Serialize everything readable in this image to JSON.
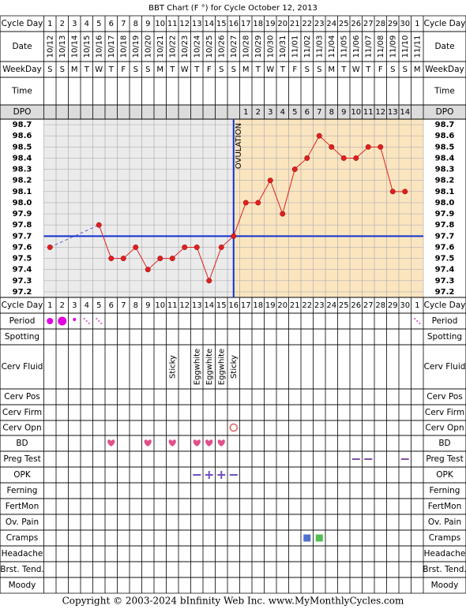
{
  "title": "BBT Chart (F °) for Cycle October 12, 2013",
  "copyright": "Copyright © 2003-2024 bInfinity Web Inc.     www.MyMonthlyCycles.com",
  "labels": {
    "cycle_day": "Cycle Day",
    "date": "Date",
    "weekday": "WeekDay",
    "time": "Time",
    "dpo": "DPO",
    "period": "Period",
    "spotting": "Spotting",
    "cerv_fluid": "Cerv Fluid",
    "cerv_pos": "Cerv Pos",
    "cerv_firm": "Cerv Firm",
    "cerv_opn": "Cerv Opn",
    "bd": "BD",
    "preg_test": "Preg Test",
    "opk": "OPK",
    "ferning": "Ferning",
    "fertmon": "FertMon",
    "ov_pain": "Ov. Pain",
    "cramps": "Cramps",
    "headache": "Headache",
    "brst_tend": "Brst. Tend.",
    "moody": "Moody"
  },
  "cycle_days": [
    1,
    2,
    3,
    4,
    5,
    6,
    7,
    8,
    9,
    10,
    11,
    12,
    13,
    14,
    15,
    16,
    17,
    18,
    19,
    20,
    21,
    22,
    23,
    24,
    25,
    26,
    27,
    28,
    29,
    30,
    1
  ],
  "dates": [
    "10/12",
    "10/13",
    "10/14",
    "10/15",
    "10/16",
    "10/17",
    "10/18",
    "10/19",
    "10/20",
    "10/21",
    "10/22",
    "10/23",
    "10/24",
    "10/25",
    "10/26",
    "10/27",
    "10/28",
    "10/29",
    "10/30",
    "10/31",
    "11/01",
    "11/02",
    "11/03",
    "11/04",
    "11/05",
    "11/06",
    "11/07",
    "11/08",
    "11/09",
    "11/10",
    "11/11"
  ],
  "weekdays": [
    "S",
    "S",
    "M",
    "T",
    "W",
    "T",
    "F",
    "S",
    "S",
    "M",
    "T",
    "W",
    "T",
    "F",
    "S",
    "S",
    "M",
    "T",
    "W",
    "T",
    "F",
    "S",
    "S",
    "M",
    "T",
    "W",
    "T",
    "F",
    "S",
    "S",
    "M"
  ],
  "dpo": [
    null,
    null,
    null,
    null,
    null,
    null,
    null,
    null,
    null,
    null,
    null,
    null,
    null,
    null,
    null,
    null,
    1,
    2,
    3,
    4,
    5,
    6,
    7,
    8,
    9,
    10,
    11,
    12,
    13,
    14,
    null
  ],
  "cerv_fluid": [
    null,
    null,
    null,
    null,
    null,
    null,
    null,
    null,
    null,
    null,
    "Sticky",
    null,
    "Eggwhite",
    "Eggwhite",
    "Eggwhite",
    "Sticky",
    null,
    null,
    null,
    null,
    null,
    null,
    null,
    null,
    null,
    null,
    null,
    null,
    null,
    null,
    null
  ],
  "chart_data": {
    "type": "line",
    "color": "#e02020",
    "values": [
      97.6,
      null,
      null,
      null,
      97.8,
      97.5,
      97.5,
      97.6,
      97.4,
      97.5,
      97.5,
      97.6,
      97.6,
      97.3,
      97.6,
      97.7,
      98.0,
      98.0,
      98.2,
      97.9,
      98.3,
      98.4,
      98.6,
      98.5,
      98.4,
      98.4,
      98.5,
      98.5,
      98.1,
      98.1,
      null
    ],
    "ylim": [
      97.15,
      98.75
    ],
    "yticks": [
      98.7,
      98.6,
      98.5,
      98.4,
      98.3,
      98.2,
      98.1,
      {
        "value": 98.0,
        "label": "98.0"
      },
      97.9,
      97.8,
      97.7,
      97.6,
      97.5,
      97.4,
      97.3,
      97.2
    ],
    "coverline": 97.7,
    "ovulation_day": 16,
    "annotation": "OVULATION"
  }
}
